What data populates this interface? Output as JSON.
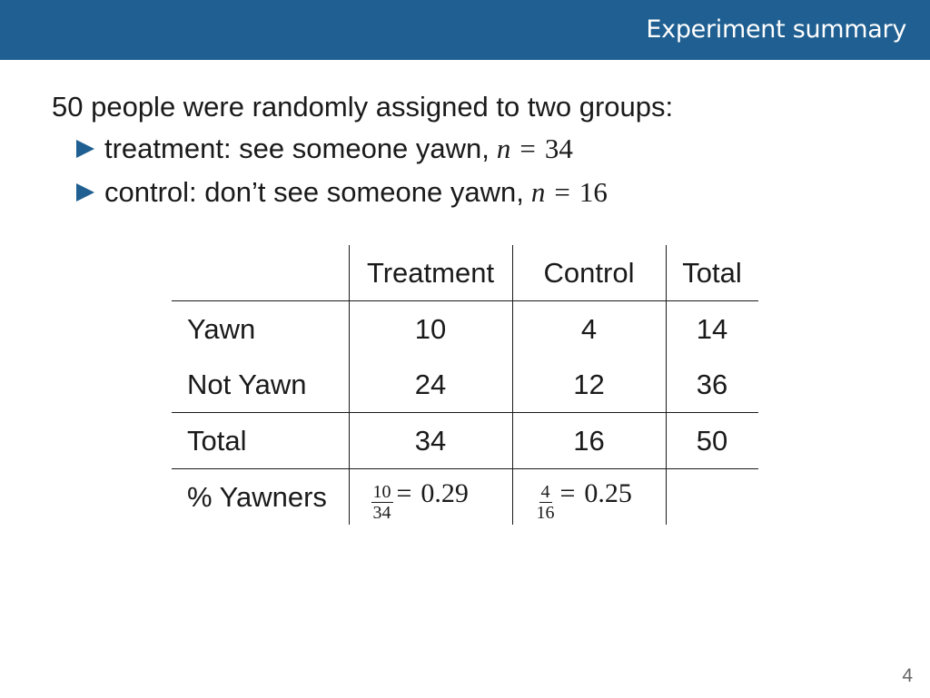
{
  "header": {
    "title": "Experiment summary",
    "color": "#1f5f91"
  },
  "intro": "50 people were randomly assigned to two groups:",
  "bullets": [
    {
      "text": "treatment: see someone yawn,",
      "var": "n",
      "eq": "=",
      "value": "34"
    },
    {
      "text": "control: don’t see someone yawn,",
      "var": "n",
      "eq": "=",
      "value": "16"
    }
  ],
  "table": {
    "columns": [
      "",
      "Treatment",
      "Control",
      "Total"
    ],
    "rows": [
      {
        "label": "Yawn",
        "treatment": "10",
        "control": "4",
        "total": "14"
      },
      {
        "label": "Not Yawn",
        "treatment": "24",
        "control": "12",
        "total": "36"
      },
      {
        "label": "Total",
        "treatment": "34",
        "control": "16",
        "total": "50"
      }
    ],
    "pct_row": {
      "label": "% Yawners",
      "treatment": {
        "num": "10",
        "den": "34",
        "eq": "=",
        "value": "0.29"
      },
      "control": {
        "num": "4",
        "den": "16",
        "eq": "=",
        "value": "0.25"
      },
      "total": ""
    }
  },
  "page_number": "4"
}
